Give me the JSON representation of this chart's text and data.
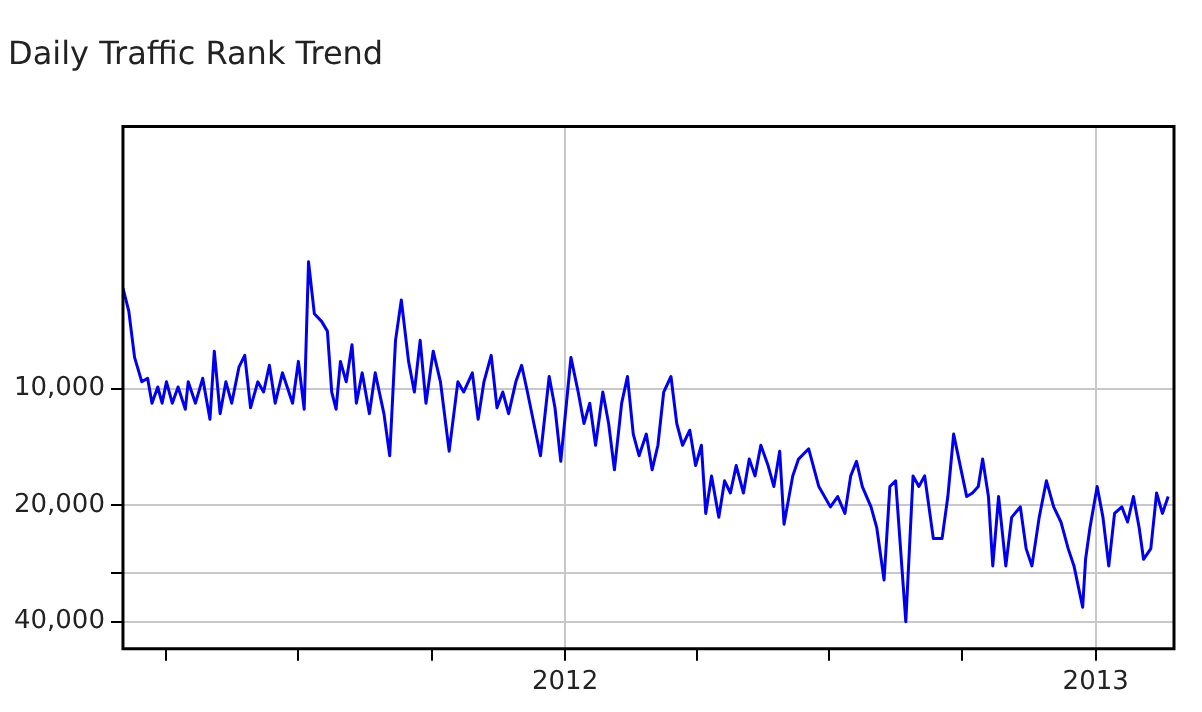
{
  "chart_data": {
    "type": "line",
    "title": "Daily Traffic Rank Trend",
    "x": [
      "2011-03-02",
      "2011-03-06",
      "2011-03-10",
      "2011-03-15",
      "2011-03-19",
      "2011-03-22",
      "2011-03-26",
      "2011-03-29",
      "2011-04-01",
      "2011-04-05",
      "2011-04-09",
      "2011-04-14",
      "2011-04-16",
      "2011-04-21",
      "2011-04-26",
      "2011-05-01",
      "2011-05-04",
      "2011-05-08",
      "2011-05-12",
      "2011-05-16",
      "2011-05-21",
      "2011-05-25",
      "2011-05-29",
      "2011-06-03",
      "2011-06-07",
      "2011-06-11",
      "2011-06-15",
      "2011-06-20",
      "2011-06-27",
      "2011-07-01",
      "2011-07-05",
      "2011-07-08",
      "2011-07-12",
      "2011-07-17",
      "2011-07-21",
      "2011-07-24",
      "2011-07-27",
      "2011-07-30",
      "2011-08-03",
      "2011-08-07",
      "2011-08-10",
      "2011-08-14",
      "2011-08-19",
      "2011-08-23",
      "2011-08-29",
      "2011-09-02",
      "2011-09-06",
      "2011-09-10",
      "2011-09-15",
      "2011-09-19",
      "2011-09-23",
      "2011-09-27",
      "2011-10-02",
      "2011-10-07",
      "2011-10-13",
      "2011-10-19",
      "2011-10-23",
      "2011-10-29",
      "2011-11-02",
      "2011-11-06",
      "2011-11-11",
      "2011-11-15",
      "2011-11-19",
      "2011-11-23",
      "2011-11-28",
      "2011-12-02",
      "2011-12-06",
      "2011-12-15",
      "2011-12-21",
      "2011-12-25",
      "2011-12-29",
      "2012-01-05",
      "2012-01-10",
      "2012-01-14",
      "2012-01-18",
      "2012-01-22",
      "2012-01-27",
      "2012-01-31",
      "2012-02-04",
      "2012-02-09",
      "2012-02-13",
      "2012-02-17",
      "2012-02-21",
      "2012-02-26",
      "2012-03-01",
      "2012-03-05",
      "2012-03-09",
      "2012-03-14",
      "2012-03-18",
      "2012-03-22",
      "2012-03-27",
      "2012-03-31",
      "2012-04-04",
      "2012-04-07",
      "2012-04-11",
      "2012-04-16",
      "2012-04-20",
      "2012-04-24",
      "2012-04-28",
      "2012-05-03",
      "2012-05-07",
      "2012-05-11",
      "2012-05-15",
      "2012-05-20",
      "2012-05-24",
      "2012-05-28",
      "2012-05-31",
      "2012-06-06",
      "2012-06-10",
      "2012-06-17",
      "2012-06-24",
      "2012-07-02",
      "2012-07-07",
      "2012-07-12",
      "2012-07-16",
      "2012-07-20",
      "2012-07-24",
      "2012-07-30",
      "2012-08-03",
      "2012-08-08",
      "2012-08-12",
      "2012-08-16",
      "2012-08-23",
      "2012-08-28",
      "2012-09-01",
      "2012-09-05",
      "2012-09-11",
      "2012-09-17",
      "2012-09-21",
      "2012-09-25",
      "2012-10-01",
      "2012-10-04",
      "2012-10-08",
      "2012-10-12",
      "2012-10-15",
      "2012-10-19",
      "2012-10-22",
      "2012-10-26",
      "2012-10-31",
      "2012-11-04",
      "2012-11-10",
      "2012-11-14",
      "2012-11-18",
      "2012-11-23",
      "2012-11-28",
      "2012-12-03",
      "2012-12-08",
      "2012-12-13",
      "2012-12-17",
      "2012-12-23",
      "2012-12-25",
      "2012-12-28",
      "2013-01-02",
      "2013-01-06",
      "2013-01-10",
      "2013-01-14",
      "2013-01-19",
      "2013-01-23",
      "2013-01-27",
      "2013-01-31",
      "2013-02-03",
      "2013-02-08",
      "2013-02-12",
      "2013-02-16",
      "2013-02-20"
    ],
    "series": [
      {
        "color": "#0000ee",
        "values": [
          5500,
          6300,
          8300,
          9600,
          9400,
          10900,
          9900,
          10900,
          9600,
          10900,
          9900,
          11300,
          9600,
          10900,
          9400,
          12000,
          8000,
          11600,
          9600,
          10900,
          8800,
          8200,
          11200,
          9600,
          10200,
          8700,
          10900,
          9100,
          10900,
          8500,
          11300,
          4700,
          6400,
          6700,
          7100,
          10200,
          11300,
          8500,
          9600,
          7700,
          10900,
          9100,
          11600,
          9100,
          11600,
          14900,
          7500,
          5900,
          8500,
          10200,
          7500,
          10900,
          8000,
          9600,
          14500,
          9600,
          10200,
          9100,
          12000,
          9600,
          8200,
          11200,
          10200,
          11600,
          9600,
          8700,
          10200,
          14900,
          9300,
          11200,
          15400,
          8300,
          10200,
          12300,
          10900,
          14000,
          10200,
          12300,
          16200,
          10900,
          9300,
          13100,
          14900,
          13100,
          16200,
          14000,
          10200,
          9300,
          12300,
          14000,
          12800,
          15800,
          14000,
          21000,
          16800,
          21500,
          17300,
          18600,
          15800,
          18600,
          15200,
          16800,
          14000,
          15800,
          17900,
          14500,
          22400,
          16800,
          15200,
          14300,
          17900,
          20200,
          19000,
          21000,
          16800,
          15400,
          17900,
          20200,
          22900,
          31200,
          17900,
          17300,
          40000,
          16800,
          17900,
          16800,
          24400,
          24400,
          19000,
          13100,
          16800,
          19000,
          18600,
          17900,
          15200,
          19000,
          28700,
          19000,
          28700,
          21500,
          20200,
          25900,
          28700,
          21500,
          17300,
          20200,
          22100,
          25900,
          28700,
          36700,
          27600,
          22900,
          17900,
          21500,
          28700,
          21000,
          20200,
          22100,
          19000,
          22900,
          27600,
          25900,
          18600,
          21000,
          19000
        ]
      }
    ],
    "xlim": [
      "2011-03-02",
      "2013-02-24"
    ],
    "xticks": [
      {
        "value": "2011-04-01",
        "label": null
      },
      {
        "value": "2011-07-01",
        "label": null
      },
      {
        "value": "2011-10-01",
        "label": null
      },
      {
        "value": "2012-01-01",
        "label": "2012"
      },
      {
        "value": "2012-04-01",
        "label": null
      },
      {
        "value": "2012-07-01",
        "label": null
      },
      {
        "value": "2012-10-01",
        "label": null
      },
      {
        "value": "2013-01-01",
        "label": "2013"
      }
    ],
    "ylim": [
      47000,
      2100
    ],
    "yticks": [
      {
        "value": 10000,
        "label": "10,000"
      },
      {
        "value": 20000,
        "label": "20,000"
      },
      {
        "value": 30000,
        "label": null
      },
      {
        "value": 40000,
        "label": "40,000"
      }
    ],
    "log": "y",
    "grid": true,
    "legend": false,
    "marker": "none",
    "line_style": "solid"
  }
}
